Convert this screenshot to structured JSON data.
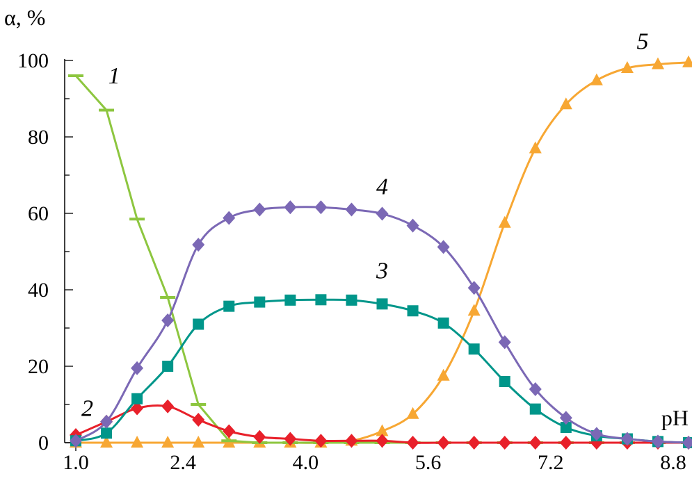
{
  "chart_data": {
    "type": "line",
    "ylabel": "α, %",
    "xlabel": "pH",
    "xlim": [
      0.9,
      9.0
    ],
    "ylim": [
      0,
      100
    ],
    "x_ticks": [
      1.0,
      2.4,
      4.0,
      5.6,
      7.2,
      8.8
    ],
    "x_tick_labels": [
      "1.0",
      "2.4",
      "4.0",
      "5.6",
      "7.2",
      "8.8"
    ],
    "y_ticks": [
      0,
      20,
      40,
      60,
      80,
      100
    ],
    "y_tick_labels": [
      "0",
      "20",
      "40",
      "60",
      "80",
      "100"
    ],
    "x_minor_step": 0.4,
    "y_minor_step": 10,
    "series": [
      {
        "name": "1",
        "color": "#8dc63f",
        "marker": "dash",
        "smooth": false,
        "label_at": [
          1.5,
          94
        ],
        "x": [
          1.0,
          1.4,
          1.8,
          2.2,
          2.6,
          3.0,
          3.4,
          3.8,
          4.2,
          4.6,
          5.0,
          5.4,
          5.8,
          6.2,
          6.6,
          7.0,
          7.4,
          7.8,
          8.2,
          8.6,
          9.0
        ],
        "y": [
          96,
          87,
          58.5,
          38,
          10,
          0.5,
          0,
          0,
          0,
          0,
          0,
          0,
          0,
          0,
          0,
          0,
          0,
          0,
          0,
          0,
          0
        ]
      },
      {
        "name": "2",
        "color": "#e8202a",
        "marker": "diamond",
        "smooth": true,
        "label_at": [
          1.15,
          7
        ],
        "x": [
          1.0,
          1.4,
          1.8,
          2.2,
          2.6,
          3.0,
          3.4,
          3.8,
          4.2,
          4.6,
          5.0,
          5.4,
          5.8,
          6.2,
          6.6,
          7.0,
          7.4,
          7.8,
          8.2,
          8.6,
          9.0
        ],
        "y": [
          2,
          5.5,
          9,
          9.5,
          6,
          3,
          1.5,
          1,
          0.5,
          0.5,
          0.5,
          0,
          0,
          0,
          0,
          0,
          0,
          0,
          0,
          0,
          0
        ]
      },
      {
        "name": "3",
        "color": "#00968a",
        "marker": "square",
        "smooth": true,
        "label_at": [
          5.0,
          43
        ],
        "x": [
          1.0,
          1.4,
          1.8,
          2.2,
          2.6,
          3.0,
          3.4,
          3.8,
          4.2,
          4.6,
          5.0,
          5.4,
          5.8,
          6.2,
          6.6,
          7.0,
          7.4,
          7.8,
          8.2,
          8.6,
          9.0
        ],
        "y": [
          0.5,
          2.5,
          11.5,
          20,
          31,
          35.7,
          36.8,
          37.3,
          37.4,
          37.3,
          36.3,
          34.5,
          31.3,
          24.5,
          16,
          8.8,
          4,
          1.8,
          1,
          0.3,
          0
        ]
      },
      {
        "name": "4",
        "color": "#7b68b5",
        "marker": "diamond",
        "smooth": true,
        "label_at": [
          5.0,
          65
        ],
        "x": [
          1.0,
          1.4,
          1.8,
          2.2,
          2.6,
          3.0,
          3.4,
          3.8,
          4.2,
          4.6,
          5.0,
          5.4,
          5.8,
          6.2,
          6.6,
          7.0,
          7.4,
          7.8,
          8.2,
          8.6,
          9.0
        ],
        "y": [
          0.5,
          5.5,
          19.5,
          32,
          51.8,
          58.8,
          61,
          61.6,
          61.6,
          61,
          59.9,
          56.8,
          51.2,
          40.5,
          26.3,
          14,
          6.5,
          2.3,
          1,
          0.3,
          0
        ]
      },
      {
        "name": "5",
        "color": "#f7a733",
        "marker": "triangle",
        "smooth": true,
        "label_at": [
          8.4,
          103
        ],
        "x": [
          1.0,
          1.4,
          1.8,
          2.2,
          2.6,
          3.0,
          3.4,
          3.8,
          4.2,
          4.6,
          5.0,
          5.4,
          5.8,
          6.2,
          6.6,
          7.0,
          7.4,
          7.8,
          8.2,
          8.6,
          9.0
        ],
        "y": [
          0,
          0,
          0,
          0,
          0,
          0,
          0,
          0,
          0,
          0.5,
          3,
          7.5,
          17.5,
          34.5,
          57.5,
          77,
          88.5,
          94.8,
          98,
          99,
          99.5
        ]
      }
    ]
  }
}
